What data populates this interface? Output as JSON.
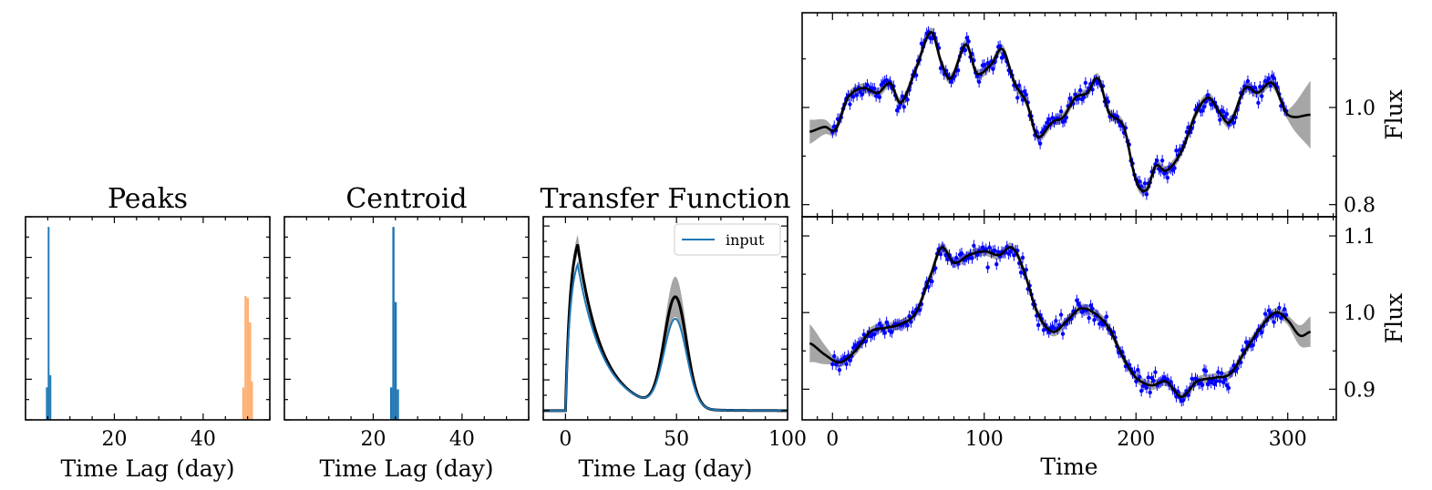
{
  "colors": {
    "hist_blue": "#1f77b4",
    "hist_orange": "#ffb072",
    "input_line": "#1f77b4",
    "model_line": "#000000",
    "band": "#a6a6a6",
    "points": "#0000ff"
  },
  "chart_data": [
    {
      "id": "peaks",
      "type": "bar",
      "title": "Peaks",
      "xlabel": "Time Lag (day)",
      "ylabel": "",
      "xlim": [
        0,
        55
      ],
      "ylim": [
        0,
        1
      ],
      "xticks": [
        20,
        40
      ],
      "series": [
        {
          "color_key": "hist_blue",
          "bins": [
            {
              "x0": 4.6,
              "x1": 5.0,
              "value": 0.16
            },
            {
              "x0": 5.0,
              "x1": 5.4,
              "value": 0.95
            },
            {
              "x0": 5.4,
              "x1": 5.8,
              "value": 0.22
            }
          ]
        },
        {
          "color_key": "hist_orange",
          "bins": [
            {
              "x0": 48.8,
              "x1": 49.3,
              "value": 0.16
            },
            {
              "x0": 49.3,
              "x1": 49.8,
              "value": 0.61
            },
            {
              "x0": 49.8,
              "x1": 50.3,
              "value": 0.6
            },
            {
              "x0": 50.3,
              "x1": 50.8,
              "value": 0.48
            },
            {
              "x0": 50.8,
              "x1": 51.2,
              "value": 0.19
            }
          ]
        }
      ]
    },
    {
      "id": "centroid",
      "type": "bar",
      "title": "Centroid",
      "xlabel": "Time Lag (day)",
      "ylabel": "",
      "xlim": [
        0,
        55
      ],
      "ylim": [
        0,
        1
      ],
      "xticks": [
        20,
        40
      ],
      "series": [
        {
          "color_key": "hist_blue",
          "bins": [
            {
              "x0": 23.8,
              "x1": 24.3,
              "value": 0.16
            },
            {
              "x0": 24.3,
              "x1": 24.8,
              "value": 0.95
            },
            {
              "x0": 24.8,
              "x1": 25.3,
              "value": 0.58
            },
            {
              "x0": 25.3,
              "x1": 25.8,
              "value": 0.15
            }
          ]
        }
      ]
    },
    {
      "id": "transfer",
      "type": "line",
      "title": "Transfer Function",
      "xlabel": "Time Lag (day)",
      "ylabel": "",
      "xlim": [
        -10,
        100
      ],
      "ylim": [
        -0.003,
        0.063
      ],
      "xticks": [
        0,
        50,
        100
      ],
      "legend": {
        "placement": "top-right",
        "entries": [
          "input"
        ]
      },
      "model_params": {
        "comp1": {
          "amp": 0.054,
          "center": 5.5,
          "rise": 2.2,
          "decay": 11.0
        },
        "comp2": {
          "amp": 0.036,
          "center": 49.5,
          "width": 5.0
        },
        "input_scale": 0.88,
        "band_frac": 0.06
      }
    },
    {
      "id": "flux_top",
      "type": "scatter",
      "title": "",
      "xlabel": "",
      "ylabel": "Flux",
      "xlim": [
        -20,
        332
      ],
      "ylim": [
        0.775,
        1.195
      ],
      "xticks": [
        0,
        100,
        200,
        300
      ],
      "yticks": [
        0.8,
        1.0
      ],
      "ytick_labels": [
        "0.8",
        "1.0"
      ],
      "data_range": [
        0,
        300
      ],
      "model_range": [
        -15,
        315
      ],
      "key_points": [
        [
          -15,
          0.95
        ],
        [
          -5,
          0.96
        ],
        [
          2,
          0.955
        ],
        [
          10,
          1.02
        ],
        [
          20,
          1.04
        ],
        [
          30,
          1.03
        ],
        [
          38,
          1.05
        ],
        [
          45,
          1.01
        ],
        [
          55,
          1.08
        ],
        [
          65,
          1.155
        ],
        [
          72,
          1.09
        ],
        [
          78,
          1.06
        ],
        [
          88,
          1.13
        ],
        [
          95,
          1.07
        ],
        [
          105,
          1.09
        ],
        [
          112,
          1.12
        ],
        [
          120,
          1.05
        ],
        [
          128,
          1.01
        ],
        [
          135,
          0.94
        ],
        [
          145,
          0.97
        ],
        [
          152,
          0.98
        ],
        [
          160,
          1.02
        ],
        [
          168,
          1.03
        ],
        [
          175,
          1.06
        ],
        [
          182,
          0.99
        ],
        [
          192,
          0.96
        ],
        [
          200,
          0.85
        ],
        [
          207,
          0.83
        ],
        [
          213,
          0.88
        ],
        [
          220,
          0.87
        ],
        [
          230,
          0.91
        ],
        [
          240,
          0.99
        ],
        [
          248,
          1.02
        ],
        [
          255,
          0.99
        ],
        [
          262,
          0.97
        ],
        [
          272,
          1.04
        ],
        [
          280,
          1.03
        ],
        [
          290,
          1.05
        ],
        [
          300,
          0.985
        ],
        [
          315,
          0.985
        ]
      ],
      "band_width": {
        "inside": 0.01,
        "left_edge": 0.025,
        "right_edge": 0.07
      }
    },
    {
      "id": "flux_bottom",
      "type": "scatter",
      "title": "",
      "xlabel": "Time",
      "ylabel": "Flux",
      "xlim": [
        -20,
        332
      ],
      "ylim": [
        0.86,
        1.125
      ],
      "xticks": [
        0,
        100,
        200,
        300
      ],
      "yticks": [
        0.9,
        1.0,
        1.1
      ],
      "ytick_labels": [
        "0.9",
        "1.0",
        "1.1"
      ],
      "data_range": [
        0,
        300
      ],
      "model_range": [
        -15,
        315
      ],
      "key_points": [
        [
          -15,
          0.96
        ],
        [
          -5,
          0.945
        ],
        [
          5,
          0.935
        ],
        [
          15,
          0.95
        ],
        [
          25,
          0.975
        ],
        [
          35,
          0.98
        ],
        [
          45,
          0.985
        ],
        [
          55,
          1.0
        ],
        [
          65,
          1.05
        ],
        [
          72,
          1.085
        ],
        [
          80,
          1.065
        ],
        [
          90,
          1.075
        ],
        [
          100,
          1.08
        ],
        [
          110,
          1.075
        ],
        [
          118,
          1.085
        ],
        [
          125,
          1.06
        ],
        [
          135,
          1.0
        ],
        [
          145,
          0.975
        ],
        [
          155,
          0.99
        ],
        [
          163,
          1.005
        ],
        [
          172,
          1.0
        ],
        [
          182,
          0.98
        ],
        [
          192,
          0.94
        ],
        [
          200,
          0.915
        ],
        [
          210,
          0.905
        ],
        [
          220,
          0.91
        ],
        [
          230,
          0.89
        ],
        [
          240,
          0.91
        ],
        [
          252,
          0.915
        ],
        [
          262,
          0.92
        ],
        [
          272,
          0.95
        ],
        [
          282,
          0.98
        ],
        [
          292,
          1.0
        ],
        [
          300,
          0.99
        ],
        [
          308,
          0.97
        ],
        [
          315,
          0.975
        ]
      ],
      "band_width": {
        "inside": 0.006,
        "left_edge": 0.025,
        "right_edge": 0.02
      }
    }
  ]
}
